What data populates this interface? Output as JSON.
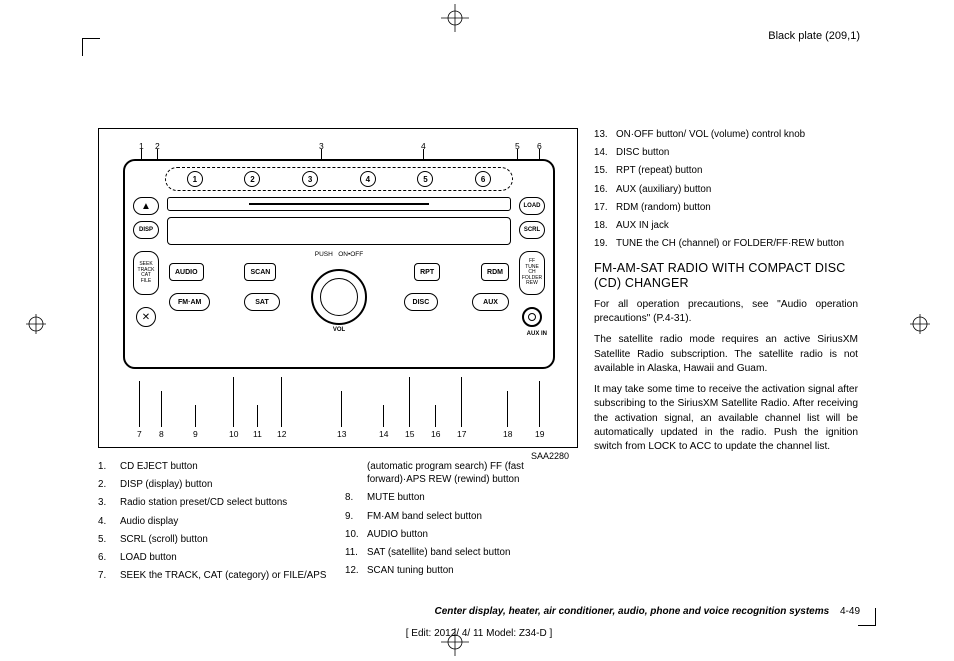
{
  "plate": "Black plate (209,1)",
  "figure_id": "SAA2280",
  "presets": [
    "1",
    "2",
    "3",
    "4",
    "5",
    "6"
  ],
  "radio": {
    "push_onoff": "PUSH   ON•OFF",
    "vol": "VOL",
    "disp": "DISP",
    "scrl": "SCRL",
    "load": "LOAD",
    "eject": "▲",
    "mute": "✕",
    "seek_stack": "SEEK\nTRACK\nCAT\nFILE",
    "tune_stack": "FF\nTUNE\nCH\nFOLDER\nREW",
    "audio": "AUDIO",
    "scan": "SCAN",
    "rpt": "RPT",
    "rdm": "RDM",
    "fmam": "FM·AM",
    "sat": "SAT",
    "disc": "DISC",
    "aux": "AUX",
    "aux_in": "AUX  IN"
  },
  "callouts_top": [
    "1",
    "2",
    "3",
    "4",
    "5",
    "6"
  ],
  "callouts_bot": [
    "7",
    "8",
    "9",
    "10",
    "11",
    "12",
    "13",
    "14",
    "15",
    "16",
    "17",
    "18",
    "19"
  ],
  "legend_left": [
    {
      "n": "1.",
      "t": "CD EJECT button"
    },
    {
      "n": "2.",
      "t": "DISP (display) button"
    },
    {
      "n": "3.",
      "t": "Radio station preset/CD select buttons"
    },
    {
      "n": "4.",
      "t": "Audio display"
    },
    {
      "n": "5.",
      "t": "SCRL (scroll) button"
    },
    {
      "n": "6.",
      "t": "LOAD button"
    },
    {
      "n": "7.",
      "t": "SEEK the TRACK, CAT (category) or FILE/APS"
    }
  ],
  "legend_mid_head": "(automatic program search) FF (fast forward)·APS REW (rewind) button",
  "legend_mid": [
    {
      "n": "8.",
      "t": "MUTE button"
    },
    {
      "n": "9.",
      "t": "FM·AM band select button"
    },
    {
      "n": "10.",
      "t": "AUDIO button"
    },
    {
      "n": "11.",
      "t": "SAT (satellite) band select button"
    },
    {
      "n": "12.",
      "t": "SCAN tuning button"
    }
  ],
  "legend_right": [
    {
      "n": "13.",
      "t": "ON·OFF button/ VOL (volume) control knob"
    },
    {
      "n": "14.",
      "t": "DISC button"
    },
    {
      "n": "15.",
      "t": "RPT (repeat) button"
    },
    {
      "n": "16.",
      "t": "AUX (auxiliary) button"
    },
    {
      "n": "17.",
      "t": "RDM (random) button"
    },
    {
      "n": "18.",
      "t": "AUX IN jack"
    },
    {
      "n": "19.",
      "t": "TUNE the CH (channel) or FOLDER/FF·REW button"
    }
  ],
  "heading": "FM-AM-SAT RADIO WITH COMPACT DISC (CD) CHANGER",
  "paras": [
    "For all operation precautions, see \"Audio operation precautions\" (P.4-31).",
    "The satellite radio mode requires an active SiriusXM Satellite Radio subscription. The satellite radio is not available in Alaska, Hawaii and Guam.",
    "It may take some time to receive the activation signal after subscribing to the SiriusXM Satellite Radio. After receiving the activation signal, an available channel list will be automatically updated in the radio. Push the ignition switch from LOCK to ACC to update the channel list."
  ],
  "footer1": "Center display, heater, air conditioner, audio, phone and voice recognition systems",
  "footer1_pg": "4-49",
  "footer2": "[ Edit: 2012/ 4/ 11   Model: Z34-D ]"
}
